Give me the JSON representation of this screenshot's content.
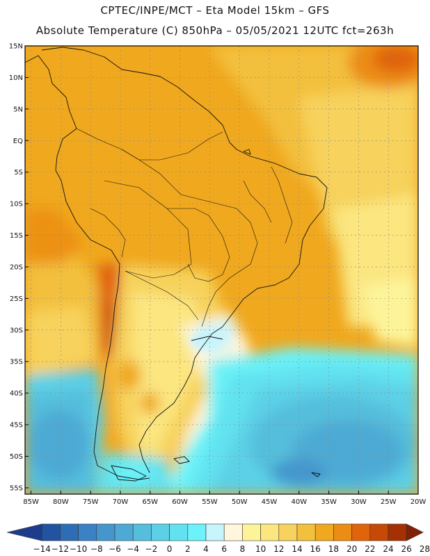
{
  "header": {
    "line1": "CPTEC/INPE/MCT –  Eta Model 15km – GFS",
    "line2": "Absolute Temperature (C) 850hPa – 05/05/2021 12UTC fct=263h"
  },
  "map": {
    "lat_labels": [
      "15N",
      "10N",
      "5N",
      "EQ",
      "5S",
      "10S",
      "15S",
      "20S",
      "25S",
      "30S",
      "35S",
      "40S",
      "45S",
      "50S",
      "55S"
    ],
    "lon_labels": [
      "85W",
      "80W",
      "75W",
      "70W",
      "65W",
      "60W",
      "55W",
      "50W",
      "45W",
      "40W",
      "35W",
      "30W",
      "25W",
      "20W"
    ],
    "lat_range": [
      15,
      -56
    ],
    "lon_range": [
      -86,
      -20
    ]
  },
  "colorbar": {
    "labels": [
      "-14",
      "-12",
      "-10",
      "-8",
      "-6",
      "-4",
      "-2",
      "0",
      "2",
      "4",
      "6",
      "8",
      "10",
      "12",
      "14",
      "16",
      "18",
      "20",
      "22",
      "24",
      "26",
      "28"
    ],
    "colors": [
      "#1e3c8c",
      "#2253a0",
      "#2d6db4",
      "#3a82c4",
      "#4596cc",
      "#4eaad4",
      "#55bedc",
      "#5cd0e6",
      "#62e2f0",
      "#6cf2f8",
      "#c8f4fc",
      "#fff6dc",
      "#fdf49a",
      "#fbe680",
      "#f7d25c",
      "#f3c03e",
      "#f0a81e",
      "#ec8c14",
      "#e0640a",
      "#c84806",
      "#a43004",
      "#802006"
    ]
  }
}
